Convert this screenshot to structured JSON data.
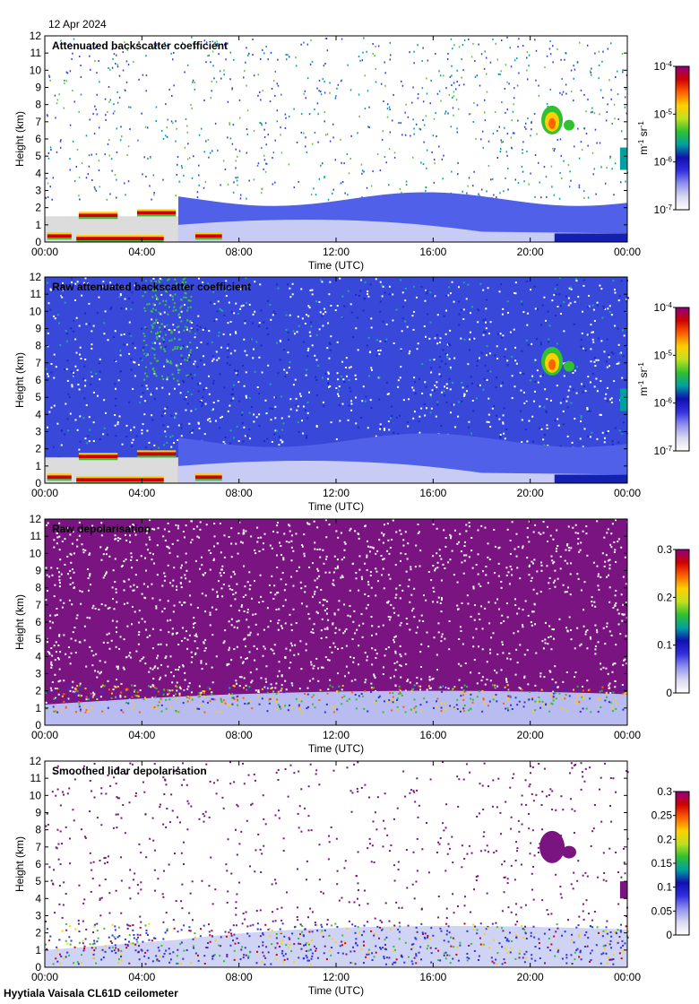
{
  "header": {
    "date": "12 Apr 2024"
  },
  "footer": {
    "site": "Hyytiala Vaisala CL61D ceilometer"
  },
  "colors": {
    "colormap": [
      "#ffffff",
      "#d8d8f0",
      "#9090f0",
      "#3030e0",
      "#1010b0",
      "#00a0a0",
      "#30c030",
      "#c0e020",
      "#ffd000",
      "#ff6000",
      "#d00000",
      "#900080"
    ]
  },
  "chart_data": [
    {
      "type": "heatmap",
      "title": "Attenuated backscatter coefficient",
      "xlabel": "Time (UTC)",
      "ylabel": "Height (km)",
      "xticks": [
        "00:00",
        "04:00",
        "08:00",
        "12:00",
        "16:00",
        "20:00",
        "00:00"
      ],
      "yticks": [
        "0",
        "1",
        "2",
        "3",
        "4",
        "5",
        "6",
        "7",
        "8",
        "9",
        "10",
        "11",
        "12"
      ],
      "ylim": [
        0,
        12
      ],
      "colorbar": {
        "scale": "log",
        "ticks": [
          "10^-7",
          "10^-6",
          "10^-5",
          "10^-4"
        ],
        "unit": "m^-1 sr^-1"
      },
      "features": {
        "boundary_layer_top_km": 2.5,
        "low_cloud_km": 1.6,
        "high_cloud_km": 7.0,
        "high_cloud_hours": [
          20.3,
          21.8
        ]
      }
    },
    {
      "type": "heatmap",
      "title": "Raw attenuated backscatter coefficient",
      "xlabel": "Time (UTC)",
      "ylabel": "Height (km)",
      "xticks": [
        "00:00",
        "04:00",
        "08:00",
        "12:00",
        "16:00",
        "20:00",
        "00:00"
      ],
      "yticks": [
        "0",
        "1",
        "2",
        "3",
        "4",
        "5",
        "6",
        "7",
        "8",
        "9",
        "10",
        "11",
        "12"
      ],
      "ylim": [
        0,
        12
      ],
      "colorbar": {
        "scale": "log",
        "ticks": [
          "10^-7",
          "10^-6",
          "10^-5",
          "10^-4"
        ],
        "unit": "m^-1 sr^-1"
      },
      "features": {
        "noise_background": "blue",
        "low_cloud_km": 1.6,
        "high_cloud_km": 7.0,
        "high_cloud_hours": [
          20.3,
          21.8
        ]
      }
    },
    {
      "type": "heatmap",
      "title": "Raw depolarisation",
      "xlabel": "Time (UTC)",
      "ylabel": "Height (km)",
      "xticks": [
        "00:00",
        "04:00",
        "08:00",
        "12:00",
        "16:00",
        "20:00",
        "00:00"
      ],
      "yticks": [
        "0",
        "1",
        "2",
        "3",
        "4",
        "5",
        "6",
        "7",
        "8",
        "9",
        "10",
        "11",
        "12"
      ],
      "ylim": [
        0,
        12
      ],
      "colorbar": {
        "scale": "linear",
        "ticks": [
          "0",
          "0.1",
          "0.2",
          "0.3"
        ],
        "range": [
          0,
          0.3
        ]
      },
      "features": {
        "noise_background": "purple",
        "high_cloud_km": 7.0
      }
    },
    {
      "type": "heatmap",
      "title": "Smoothed lidar depolarisation",
      "xlabel": "Time (UTC)",
      "ylabel": "Height (km)",
      "xticks": [
        "00:00",
        "04:00",
        "08:00",
        "12:00",
        "16:00",
        "20:00",
        "00:00"
      ],
      "yticks": [
        "0",
        "1",
        "2",
        "3",
        "4",
        "5",
        "6",
        "7",
        "8",
        "9",
        "10",
        "11",
        "12"
      ],
      "ylim": [
        0,
        12
      ],
      "colorbar": {
        "scale": "linear",
        "ticks": [
          "0",
          "0.05",
          "0.1",
          "0.15",
          "0.2",
          "0.25",
          "0.3"
        ],
        "range": [
          0,
          0.3
        ]
      },
      "features": {
        "boundary_layer_top_km": 2.5,
        "high_cloud_km": 7.0
      }
    }
  ]
}
